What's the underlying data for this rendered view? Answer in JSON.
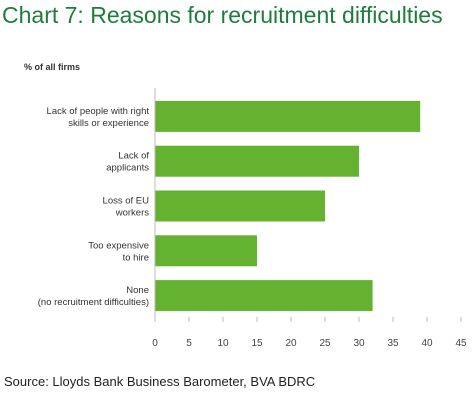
{
  "chart_data": {
    "type": "bar",
    "orientation": "horizontal",
    "title": "Chart 7: Reasons for recruitment difficulties",
    "ylabel": "% of all firms",
    "categories": [
      [
        "Lack of people with right",
        "skills or experience"
      ],
      [
        "Lack of",
        "applicants"
      ],
      [
        "Loss of EU",
        "workers"
      ],
      [
        "Too expensive",
        "to hire"
      ],
      [
        "None",
        "(no recruitment difficulties)"
      ]
    ],
    "values": [
      39,
      30,
      25,
      15,
      32
    ],
    "xlim": [
      0,
      45
    ],
    "xticks": [
      0,
      5,
      10,
      15,
      20,
      25,
      30,
      35,
      40,
      45
    ],
    "bar_color": "#64b22f",
    "grid": false,
    "legend": "none"
  },
  "source": "Source: Lloyds Bank Business Barometer, BVA BDRC"
}
